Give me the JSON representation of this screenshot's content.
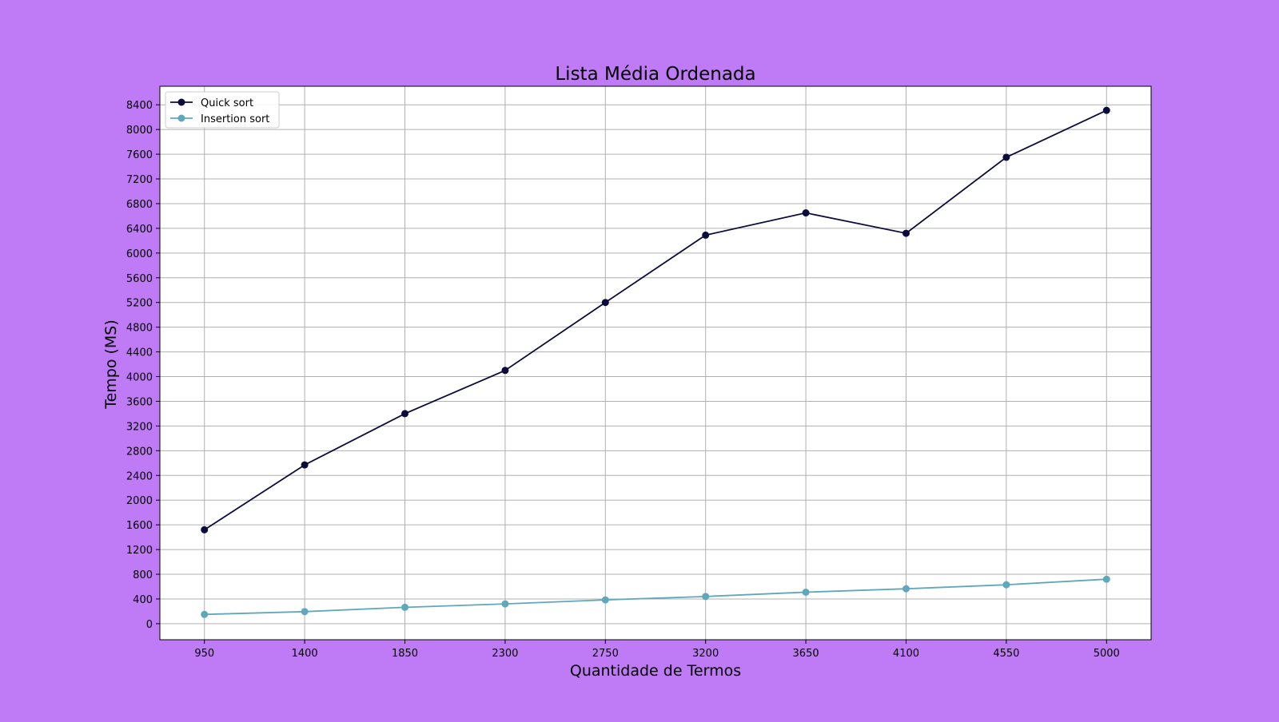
{
  "colors": {
    "background": "#bf7af5",
    "plot_background": "#ffffff",
    "grid": "#b0b0b0"
  },
  "chart_data": {
    "type": "line",
    "title": "Lista Média Ordenada",
    "xlabel": "Quantidade de Termos",
    "ylabel": "Tempo (MS)",
    "x": [
      950,
      1400,
      1850,
      2300,
      2750,
      3200,
      3650,
      4100,
      4550,
      5000
    ],
    "x_tick_labels": [
      "950",
      "1400",
      "1850",
      "2300",
      "2750",
      "3200",
      "3650",
      "4100",
      "4550",
      "5000"
    ],
    "xlim": [
      750,
      5200
    ],
    "ylim": [
      -260,
      8700
    ],
    "y_ticks": [
      0,
      400,
      800,
      1200,
      1600,
      2000,
      2400,
      2800,
      3200,
      3600,
      4000,
      4400,
      4800,
      5200,
      5600,
      6000,
      6400,
      6800,
      7200,
      7600,
      8000,
      8400
    ],
    "grid": true,
    "legend_position": "top-left",
    "series": [
      {
        "name": "Quick sort",
        "color": "#0c0c3c",
        "marker": "circle",
        "values": [
          1520,
          2570,
          3400,
          4100,
          5200,
          6290,
          6650,
          6320,
          7550,
          8310
        ]
      },
      {
        "name": "Insertion sort",
        "color": "#5fa8bc",
        "marker": "circle",
        "values": [
          150,
          195,
          265,
          320,
          385,
          440,
          510,
          565,
          630,
          720
        ]
      }
    ]
  }
}
